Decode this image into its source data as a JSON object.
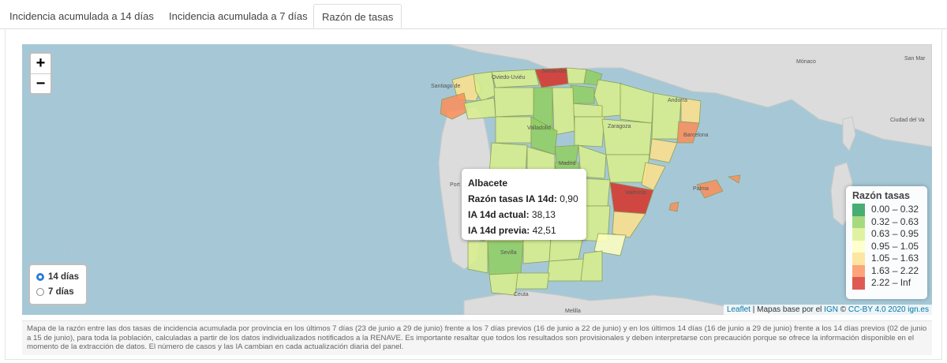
{
  "tabs": [
    {
      "label": "Incidencia acumulada a 14 días"
    },
    {
      "label": "Incidencia acumulada a 7 días"
    },
    {
      "label": "Razón de tasas"
    }
  ],
  "zoom": {
    "in": "+",
    "out": "−"
  },
  "tooltip": {
    "name": "Albacete",
    "razon_label": "Razón tasas IA 14d:",
    "razon_value": "0,90",
    "actual_label": "IA 14d actual:",
    "actual_value": "38,13",
    "previa_label": "IA 14d previa:",
    "previa_value": "42,51"
  },
  "legend": {
    "title": "Razón tasas",
    "items": [
      {
        "label": "0.00 – 0.32",
        "color": "#1a9850"
      },
      {
        "label": "0.32 – 0.63",
        "color": "#91cf60"
      },
      {
        "label": "0.63 – 0.95",
        "color": "#d9ef8b"
      },
      {
        "label": "0.95 – 1.05",
        "color": "#ffffbf"
      },
      {
        "label": "1.05 – 1.63",
        "color": "#fee08b"
      },
      {
        "label": "1.63 – 2.22",
        "color": "#fc8d59"
      },
      {
        "label": "2.22 – Inf",
        "color": "#d73027"
      }
    ]
  },
  "radios": {
    "opt14": "14 días",
    "opt7": "7 días",
    "selected": "14 días"
  },
  "places": [
    "Mónaco",
    "San Mar",
    "Ciudad del Va",
    "Santander",
    "Oviedo-Uviéu",
    "Santiago de",
    "Andorra",
    "Barcelona",
    "Valladolid",
    "Zaragoza",
    "Madrid",
    "València",
    "Palma",
    "Sevilla",
    "Ceuta",
    "Melilla",
    "Port"
  ],
  "attribution": {
    "leaflet": "Leaflet",
    "sep": " | Mapas base por el ",
    "ign": "IGN",
    "copy": " © ",
    "license": "CC-BY 4.0 2020 ign.es"
  },
  "caption": "Mapa de la razón entre las dos tasas de incidencia acumulada por provincia en los últimos 7 días (23 de junio a 29 de junio) frente a los 7 días previos (16 de junio a 22 de junio) y en los últimos 14 días (16 de junio a 29 de junio) frente a los 14 días previos (02 de junio a 15 de junio), para toda la población, calculadas a partir de los datos individualizados notificados a la RENAVE. Es importante resaltar que todos los resultados son provisionales y deben interpretarse con precaución porque se ofrece la información disponible en el momento de la extracción de datos. El número de casos y las IA cambian en cada actualización diaria del panel."
}
